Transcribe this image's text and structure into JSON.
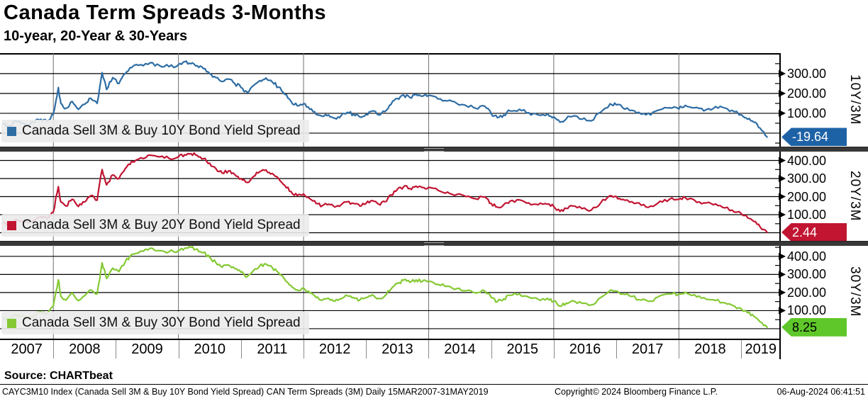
{
  "header": {
    "title": "Canada Term Spreads 3-Months",
    "subtitle": "10-year, 20-Year & 30-Years"
  },
  "footer": {
    "source": "Source: CHARTbeat",
    "info_left": "CAYC3M10 Index (Canada Sell 3M & Buy 10Y Bond Yield Spread) CAN Term Spreads (3M)  Daily 15MAR2007-31MAY2019",
    "copyright": "Copyright© 2024 Bloomberg Finance L.P.",
    "datetime": "06-Aug-2024 06:41:51"
  },
  "chart_data": {
    "type": "line",
    "title": "Canada Term Spreads 3-Months",
    "subtitle": "10-year, 20-Year & 30-Years",
    "grid": true,
    "legend_position": "bottom-left",
    "x_axis": {
      "years": [
        "2007",
        "2008",
        "2009",
        "2010",
        "2011",
        "2012",
        "2013",
        "2014",
        "2015",
        "2016",
        "2017",
        "2018",
        "2019"
      ],
      "grid_years": [
        2008,
        2010,
        2012,
        2014,
        2016,
        2018
      ],
      "range_label": "15MAR2007-31MAY2019"
    },
    "x": [
      2007.2,
      2007.3,
      2007.4,
      2007.5,
      2007.6,
      2007.7,
      2007.8,
      2007.9,
      2008.0,
      2008.08,
      2008.12,
      2008.2,
      2008.3,
      2008.4,
      2008.5,
      2008.6,
      2008.7,
      2008.78,
      2008.85,
      2008.95,
      2009.05,
      2009.15,
      2009.25,
      2009.4,
      2009.55,
      2009.7,
      2009.85,
      2010.0,
      2010.1,
      2010.2,
      2010.3,
      2010.4,
      2010.5,
      2010.6,
      2010.7,
      2010.8,
      2010.9,
      2011.0,
      2011.1,
      2011.2,
      2011.3,
      2011.4,
      2011.5,
      2011.6,
      2011.7,
      2011.8,
      2011.9,
      2012.0,
      2012.1,
      2012.2,
      2012.3,
      2012.4,
      2012.5,
      2012.6,
      2012.7,
      2012.8,
      2012.9,
      2013.0,
      2013.1,
      2013.2,
      2013.3,
      2013.4,
      2013.5,
      2013.6,
      2013.7,
      2013.8,
      2013.9,
      2014.0,
      2014.15,
      2014.3,
      2014.45,
      2014.6,
      2014.75,
      2014.9,
      2015.0,
      2015.1,
      2015.2,
      2015.3,
      2015.45,
      2015.6,
      2015.75,
      2015.9,
      2016.0,
      2016.1,
      2016.2,
      2016.3,
      2016.45,
      2016.6,
      2016.75,
      2016.9,
      2017.0,
      2017.1,
      2017.25,
      2017.4,
      2017.55,
      2017.7,
      2017.85,
      2018.0,
      2018.1,
      2018.25,
      2018.4,
      2018.55,
      2018.7,
      2018.85,
      2019.0,
      2019.1,
      2019.2,
      2019.3,
      2019.41
    ],
    "panels": [
      {
        "name": "10Y/3M",
        "legend": "Canada Sell 3M & Buy 10Y Bond Yield Spread",
        "color": "#2E6DA4",
        "badge": {
          "value": "-19.64",
          "bg": "#1E62A6",
          "text": "#ffffff"
        },
        "last_value": -19.64,
        "ylim": [
          -68,
          403
        ],
        "yticks": [
          300,
          200,
          100
        ],
        "grid_levels": [
          300,
          200,
          100,
          0
        ],
        "values": [
          45,
          35,
          60,
          50,
          40,
          55,
          70,
          60,
          95,
          230,
          150,
          125,
          160,
          120,
          145,
          175,
          150,
          305,
          220,
          280,
          250,
          300,
          330,
          345,
          355,
          340,
          335,
          345,
          360,
          350,
          340,
          325,
          300,
          280,
          260,
          272,
          250,
          230,
          205,
          240,
          265,
          278,
          258,
          232,
          195,
          160,
          138,
          148,
          120,
          95,
          85,
          92,
          75,
          88,
          105,
          95,
          82,
          95,
          112,
          92,
          108,
          145,
          175,
          192,
          180,
          196,
          186,
          190,
          172,
          162,
          150,
          138,
          125,
          135,
          98,
          78,
          92,
          112,
          120,
          103,
          92,
          97,
          82,
          55,
          72,
          85,
          70,
          62,
          105,
          148,
          142,
          128,
          115,
          95,
          92,
          118,
          128,
          122,
          140,
          128,
          112,
          124,
          130,
          115,
          92,
          70,
          55,
          25,
          -19.64
        ]
      },
      {
        "name": "20Y/3M",
        "legend": "Canada Sell 3M & Buy 20Y Bond Yield Spread",
        "color": "#C11532",
        "badge": {
          "value": "2.44",
          "bg": "#C11532",
          "text": "#ffffff"
        },
        "last_value": 2.44,
        "ylim": [
          -45,
          453
        ],
        "yticks": [
          400,
          300,
          200,
          100
        ],
        "grid_levels": [
          400,
          300,
          200,
          100,
          0
        ],
        "values": [
          58,
          48,
          75,
          65,
          55,
          70,
          88,
          78,
          115,
          255,
          170,
          148,
          185,
          145,
          170,
          205,
          180,
          350,
          265,
          320,
          300,
          355,
          395,
          415,
          430,
          420,
          412,
          420,
          432,
          438,
          428,
          410,
          385,
          355,
          330,
          342,
          322,
          300,
          278,
          312,
          338,
          348,
          328,
          300,
          262,
          228,
          205,
          215,
          188,
          162,
          150,
          158,
          142,
          155,
          172,
          162,
          148,
          162,
          178,
          158,
          172,
          210,
          240,
          255,
          245,
          258,
          250,
          252,
          235,
          225,
          212,
          200,
          188,
          198,
          162,
          142,
          155,
          175,
          182,
          165,
          155,
          158,
          145,
          118,
          135,
          148,
          133,
          125,
          165,
          205,
          200,
          185,
          172,
          152,
          148,
          175,
          185,
          185,
          195,
          180,
          165,
          155,
          140,
          125,
          105,
          82,
          62,
          32,
          2.44
        ]
      },
      {
        "name": "30Y/3M",
        "legend": "Canada Sell 3M & Buy 30Y Bond Yield Spread",
        "color": "#84C933",
        "badge": {
          "value": "8.25",
          "bg": "#5FC72A",
          "text": "#000000"
        },
        "last_value": 8.25,
        "ylim": [
          -55,
          462
        ],
        "yticks": [
          400,
          300,
          200,
          100
        ],
        "grid_levels": [
          400,
          300,
          200,
          100,
          0
        ],
        "values": [
          62,
          50,
          80,
          70,
          58,
          75,
          95,
          85,
          125,
          270,
          180,
          158,
          198,
          155,
          182,
          215,
          192,
          365,
          278,
          335,
          315,
          370,
          410,
          430,
          445,
          432,
          425,
          432,
          445,
          450,
          440,
          420,
          395,
          365,
          340,
          352,
          332,
          312,
          288,
          322,
          348,
          358,
          338,
          310,
          272,
          238,
          215,
          225,
          198,
          172,
          158,
          168,
          152,
          165,
          182,
          172,
          158,
          172,
          188,
          168,
          182,
          220,
          250,
          268,
          256,
          270,
          262,
          262,
          245,
          235,
          222,
          210,
          198,
          208,
          172,
          150,
          165,
          185,
          192,
          175,
          163,
          168,
          152,
          125,
          142,
          155,
          140,
          132,
          172,
          212,
          208,
          192,
          178,
          158,
          152,
          182,
          192,
          192,
          202,
          188,
          172,
          160,
          145,
          130,
          110,
          88,
          68,
          38,
          8.25
        ]
      }
    ]
  }
}
